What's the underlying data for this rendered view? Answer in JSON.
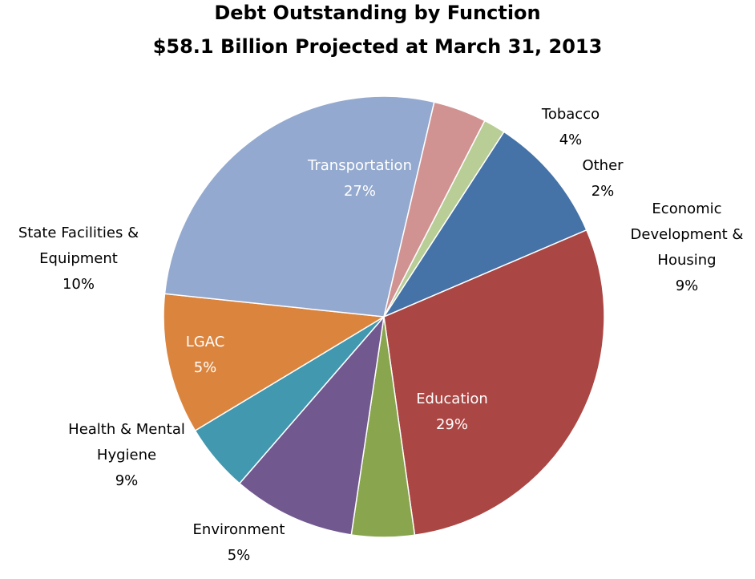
{
  "chart_data": {
    "type": "pie",
    "title": "Debt Outstanding by Function",
    "subtitle": "$58.1 Billion Projected at March 31, 2013",
    "slices": [
      {
        "name": "Economic Development & Housing",
        "label_lines": [
          "Economic",
          "Development &",
          "Housing"
        ],
        "pct_label": "9%",
        "value": 9.4,
        "color": "#4572A7",
        "label_color": "#000000"
      },
      {
        "name": "Education",
        "label_lines": [
          "Education"
        ],
        "pct_label": "29%",
        "value": 29.2,
        "color": "#AA4643",
        "label_color": "#ffffff"
      },
      {
        "name": "Environment",
        "label_lines": [
          "Environment"
        ],
        "pct_label": "5%",
        "value": 4.6,
        "color": "#89A54E",
        "label_color": "#000000"
      },
      {
        "name": "Health & Mental Hygiene",
        "label_lines": [
          "Health & Mental",
          "Hygiene"
        ],
        "pct_label": "9%",
        "value": 9.0,
        "color": "#71588F",
        "label_color": "#000000"
      },
      {
        "name": "LGAC",
        "label_lines": [
          "LGAC"
        ],
        "pct_label": "5%",
        "value": 5.0,
        "color": "#4198AF",
        "label_color": "#ffffff"
      },
      {
        "name": "State Facilities & Equipment",
        "label_lines": [
          "State Facilities &",
          "Equipment"
        ],
        "pct_label": "10%",
        "value": 10.3,
        "color": "#DB843D",
        "label_color": "#000000"
      },
      {
        "name": "Transportation",
        "label_lines": [
          "Transportation"
        ],
        "pct_label": "27%",
        "value": 27.0,
        "color": "#93A9CF",
        "label_color": "#ffffff"
      },
      {
        "name": "Tobacco",
        "label_lines": [
          "Tobacco"
        ],
        "pct_label": "4%",
        "value": 3.9,
        "color": "#D19392",
        "label_color": "#000000"
      },
      {
        "name": "Other",
        "label_lines": [
          "Other"
        ],
        "pct_label": "2%",
        "value": 1.6,
        "color": "#B9CD96",
        "label_color": "#000000"
      }
    ]
  }
}
